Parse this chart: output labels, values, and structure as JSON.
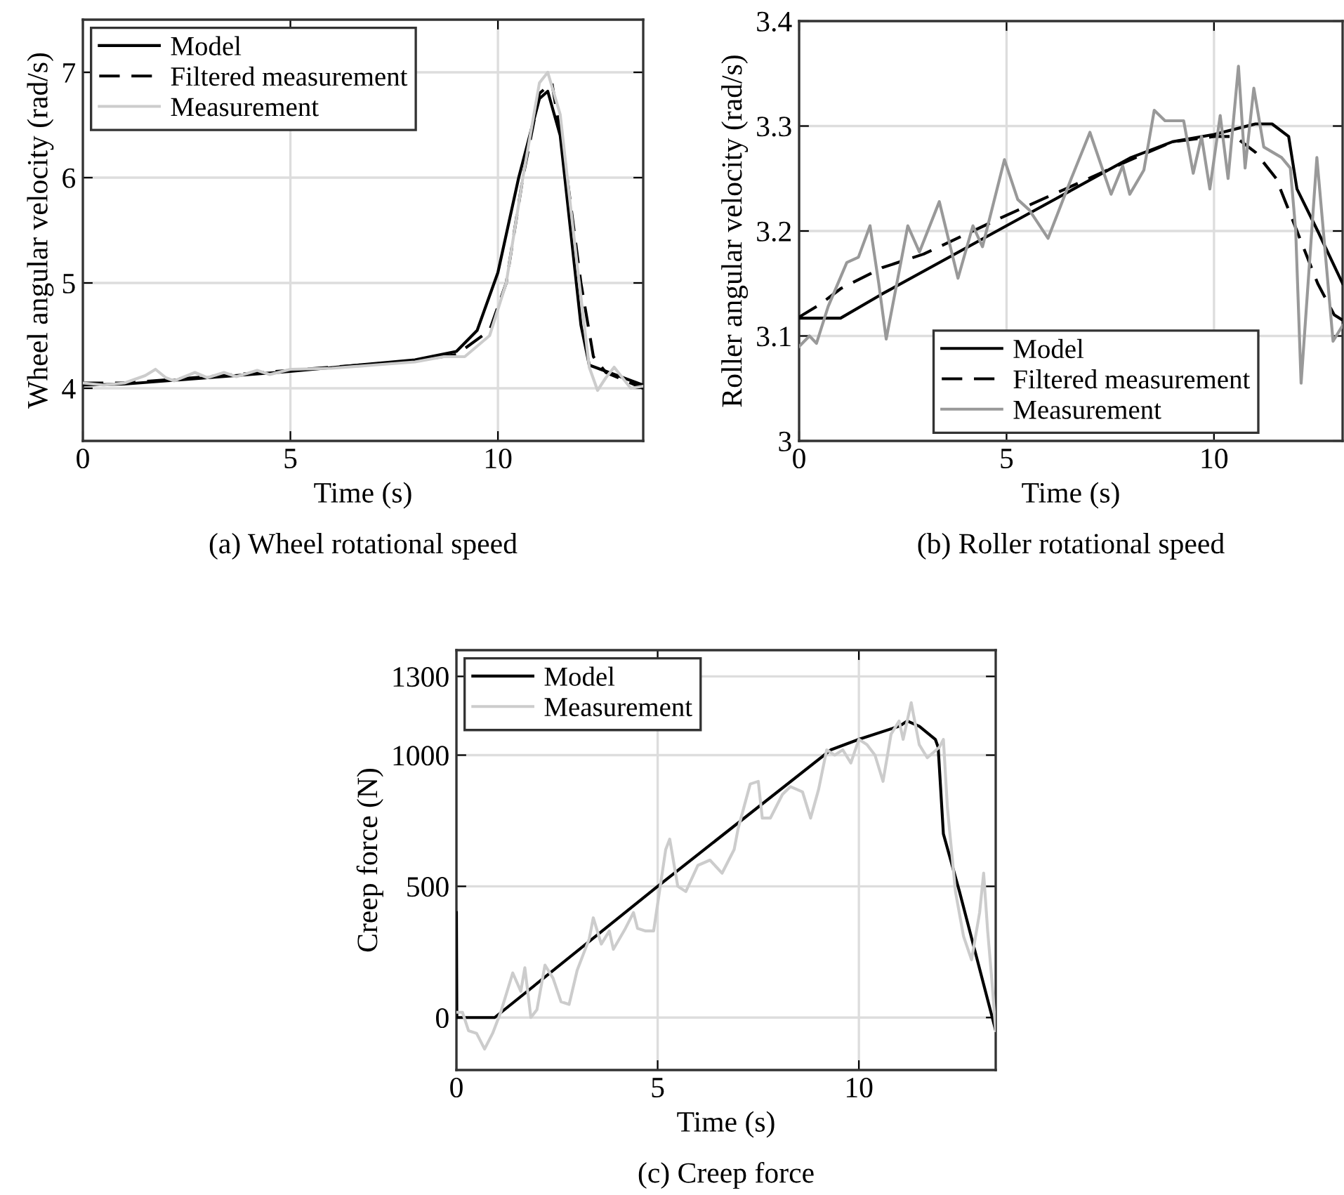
{
  "chart_data": [
    {
      "type": "line",
      "title": "(a) Wheel rotational speed",
      "xlabel": "Time (s)",
      "ylabel": "Wheel angular velocity (rad/s)",
      "xlim": [
        0,
        13.5
      ],
      "ylim": [
        3.5,
        7.5
      ],
      "xticks": [
        0,
        5,
        10
      ],
      "yticks": [
        4,
        5,
        6,
        7
      ],
      "grid": true,
      "legend": "top left",
      "series": [
        {
          "name": "Model",
          "color": "#000000",
          "line_style": "solid",
          "x": [
            0,
            1,
            5,
            8,
            9,
            9.5,
            10,
            10.5,
            11,
            11.2,
            11.5,
            12,
            12.2,
            13.5
          ],
          "values": [
            4.03,
            4.04,
            4.16,
            4.27,
            4.35,
            4.55,
            5.1,
            6.0,
            6.75,
            6.82,
            6.4,
            4.6,
            4.22,
            4.03
          ]
        },
        {
          "name": "Filtered measurement",
          "color": "#000000",
          "line_style": "dashed",
          "x": [
            0,
            1,
            2,
            5,
            8,
            9,
            9.8,
            10.2,
            10.6,
            11.0,
            11.3,
            11.6,
            12.0,
            12.3,
            12.6,
            13.2,
            13.5
          ],
          "values": [
            4.05,
            4.05,
            4.08,
            4.17,
            4.26,
            4.32,
            4.55,
            5.0,
            6.0,
            6.8,
            6.9,
            6.2,
            5.0,
            4.3,
            4.15,
            4.05,
            4.0
          ]
        },
        {
          "name": "Measurement",
          "color": "#cccccc",
          "line_style": "solid",
          "x": [
            0,
            0.5,
            1,
            1.5,
            1.75,
            2,
            2.2,
            2.7,
            3,
            3.4,
            3.7,
            4.2,
            4.5,
            5,
            6,
            7,
            8,
            8.7,
            9.2,
            9.8,
            10.2,
            10.6,
            11,
            11.2,
            11.5,
            11.9,
            12.2,
            12.4,
            12.6,
            12.8,
            13.0,
            13.2,
            13.5
          ],
          "values": [
            4.05,
            4.03,
            4.05,
            4.12,
            4.18,
            4.1,
            4.07,
            4.15,
            4.1,
            4.15,
            4.11,
            4.17,
            4.13,
            4.18,
            4.19,
            4.22,
            4.25,
            4.3,
            4.3,
            4.5,
            5.0,
            6.0,
            6.9,
            7.0,
            6.6,
            5.2,
            4.2,
            3.98,
            4.1,
            4.2,
            4.1,
            4.0,
            4.02
          ]
        }
      ]
    },
    {
      "type": "line",
      "title": "(b) Roller rotational speed",
      "xlabel": "Time (s)",
      "ylabel": "Roller angular velocity (rad/s)",
      "xlim": [
        0,
        13.1
      ],
      "ylim": [
        3,
        3.4
      ],
      "xticks": [
        0,
        5,
        10
      ],
      "yticks": [
        3,
        3.1,
        3.2,
        3.3,
        3.4
      ],
      "grid": true,
      "legend": "bottom right",
      "series": [
        {
          "name": "Model",
          "color": "#000000",
          "line_style": "solid",
          "x": [
            0,
            1,
            2,
            5,
            8,
            9,
            10,
            11,
            11.4,
            11.8,
            12.0,
            12.5,
            13.1
          ],
          "values": [
            3.117,
            3.117,
            3.14,
            3.205,
            3.27,
            3.285,
            3.292,
            3.302,
            3.302,
            3.29,
            3.24,
            3.2,
            3.15
          ]
        },
        {
          "name": "Filtered measurement",
          "color": "#000000",
          "line_style": "dashed",
          "x": [
            0,
            0.5,
            1,
            2,
            3,
            5,
            8,
            9,
            10,
            10.5,
            11,
            11.5,
            12,
            12.5,
            12.9,
            13.1
          ],
          "values": [
            3.118,
            3.13,
            3.145,
            3.165,
            3.178,
            3.215,
            3.268,
            3.285,
            3.29,
            3.29,
            3.275,
            3.25,
            3.2,
            3.15,
            3.12,
            3.115
          ]
        },
        {
          "name": "Measurement",
          "color": "#999999",
          "line_style": "solid",
          "x": [
            0,
            0.25,
            0.42,
            0.7,
            1.15,
            1.43,
            1.71,
            1.92,
            2.1,
            2.62,
            2.9,
            3.38,
            3.83,
            4.19,
            4.42,
            4.95,
            5.27,
            5.55,
            6.0,
            6.56,
            7.01,
            7.52,
            7.8,
            7.97,
            8.31,
            8.56,
            8.82,
            9.27,
            9.5,
            9.7,
            9.9,
            10.15,
            10.34,
            10.59,
            10.75,
            10.96,
            11.2,
            11.63,
            11.84,
            11.97,
            12.1,
            12.48,
            12.87,
            13.1
          ],
          "values": [
            3.09,
            3.1,
            3.093,
            3.128,
            3.17,
            3.175,
            3.205,
            3.15,
            3.097,
            3.205,
            3.18,
            3.228,
            3.155,
            3.205,
            3.185,
            3.268,
            3.23,
            3.22,
            3.193,
            3.25,
            3.294,
            3.235,
            3.262,
            3.235,
            3.258,
            3.315,
            3.305,
            3.305,
            3.255,
            3.29,
            3.24,
            3.31,
            3.25,
            3.357,
            3.26,
            3.336,
            3.28,
            3.27,
            3.26,
            3.2,
            3.055,
            3.27,
            3.095,
            3.11
          ]
        }
      ]
    },
    {
      "type": "line",
      "title": "(c) Creep force",
      "xlabel": "Time (s)",
      "ylabel": "Creep force (N)",
      "xlim": [
        0,
        13.4
      ],
      "ylim": [
        -200,
        1400
      ],
      "xticks": [
        0,
        5,
        10
      ],
      "yticks": [
        0,
        500,
        1000,
        1300
      ],
      "grid": true,
      "legend": "top left",
      "series": [
        {
          "name": "Model",
          "color": "#000000",
          "line_style": "solid",
          "x": [
            0,
            0.01,
            0.95,
            5,
            9.3,
            10,
            11,
            11.2,
            11.5,
            11.9,
            11.97,
            12.1,
            12.5,
            13.4
          ],
          "values": [
            400,
            0,
            0,
            500,
            1020,
            1060,
            1110,
            1130,
            1110,
            1060,
            1030,
            700,
            480,
            -50
          ]
        },
        {
          "name": "Measurement",
          "color": "#cccccc",
          "line_style": "solid",
          "x": [
            0,
            0.15,
            0.3,
            0.5,
            0.7,
            0.9,
            1.1,
            1.4,
            1.6,
            1.7,
            1.85,
            2.0,
            2.2,
            2.4,
            2.6,
            2.8,
            3.0,
            3.3,
            3.4,
            3.6,
            3.8,
            3.9,
            4.2,
            4.4,
            4.5,
            4.7,
            4.9,
            5.2,
            5.3,
            5.5,
            5.7,
            6.0,
            6.3,
            6.6,
            6.9,
            7.0,
            7.3,
            7.5,
            7.6,
            7.8,
            8.1,
            8.3,
            8.6,
            8.8,
            9.0,
            9.2,
            9.4,
            9.6,
            9.8,
            10.0,
            10.2,
            10.4,
            10.6,
            10.8,
            11.0,
            11.1,
            11.3,
            11.5,
            11.7,
            12.0,
            12.1,
            12.2,
            12.4,
            12.6,
            12.8,
            13.0,
            13.1,
            13.2,
            13.3,
            13.4
          ],
          "values": [
            20,
            20,
            -50,
            -60,
            -120,
            -60,
            20,
            170,
            100,
            190,
            0,
            30,
            200,
            150,
            60,
            50,
            180,
            300,
            380,
            280,
            330,
            260,
            340,
            400,
            340,
            330,
            330,
            640,
            680,
            500,
            480,
            580,
            600,
            550,
            640,
            720,
            890,
            900,
            760,
            760,
            850,
            880,
            860,
            760,
            870,
            1020,
            1000,
            1020,
            970,
            1060,
            1040,
            1000,
            900,
            1080,
            1130,
            1060,
            1200,
            1040,
            990,
            1030,
            1060,
            800,
            480,
            310,
            220,
            400,
            550,
            330,
            150,
            -50
          ]
        }
      ]
    }
  ]
}
